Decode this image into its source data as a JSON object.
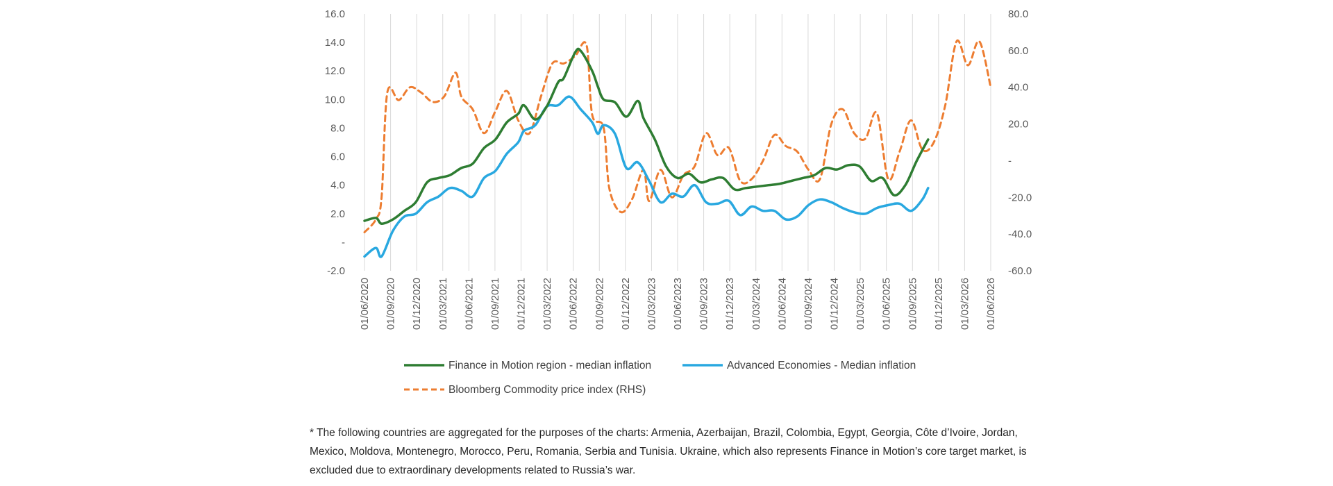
{
  "chart_data": {
    "type": "line",
    "y_left": {
      "ticks": [
        "16.0",
        "14.0",
        "12.0",
        "10.0",
        "8.0",
        "6.0",
        "4.0",
        "2.0",
        "-",
        "-2.0"
      ],
      "min": -2,
      "max": 16
    },
    "y_right": {
      "ticks": [
        "80.0",
        "60.0",
        "40.0",
        "20.0",
        "-",
        "-20.0",
        "-40.0",
        "-60.0"
      ],
      "min": -60,
      "max": 80
    },
    "x_ticks": [
      "01/06/2020",
      "01/09/2020",
      "01/12/2020",
      "01/03/2021",
      "01/06/2021",
      "01/09/2021",
      "01/12/2021",
      "01/03/2022",
      "01/06/2022",
      "01/09/2022",
      "01/12/2022",
      "01/03/2023",
      "01/06/2023",
      "01/09/2023",
      "01/12/2023",
      "01/03/2024",
      "01/06/2024",
      "01/09/2024",
      "01/12/2024",
      "01/03/2025",
      "01/06/2025",
      "01/09/2025",
      "01/12/2025",
      "01/03/2026",
      "01/06/2026"
    ],
    "x_index_range": [
      0,
      72
    ],
    "series": [
      {
        "name": "Finance in Motion region - median inflation",
        "axis": "left",
        "color": "#2e7d32",
        "style": "solid",
        "points": [
          [
            0,
            1.5
          ],
          [
            2,
            1.7
          ],
          [
            3,
            1.3
          ],
          [
            5,
            1.6
          ],
          [
            7,
            2.2
          ],
          [
            9,
            2.8
          ],
          [
            11,
            4.2
          ],
          [
            13,
            4.5
          ],
          [
            15,
            4.7
          ],
          [
            17,
            5.2
          ],
          [
            19,
            5.5
          ],
          [
            21,
            6.6
          ],
          [
            23,
            7.2
          ],
          [
            25,
            8.4
          ],
          [
            27,
            9.0
          ],
          [
            28,
            9.6
          ],
          [
            30,
            8.6
          ],
          [
            32,
            9.5
          ],
          [
            34,
            11.2
          ],
          [
            35,
            11.5
          ],
          [
            37,
            13.3
          ],
          [
            38,
            13.4
          ],
          [
            40,
            12.0
          ],
          [
            41,
            10.9
          ],
          [
            42,
            10.0
          ],
          [
            44,
            9.8
          ],
          [
            46,
            8.8
          ],
          [
            48,
            9.9
          ],
          [
            49,
            8.7
          ],
          [
            51,
            7.2
          ],
          [
            53,
            5.3
          ],
          [
            55,
            4.5
          ],
          [
            57,
            4.8
          ],
          [
            59,
            4.2
          ],
          [
            61,
            4.4
          ],
          [
            63,
            4.5
          ],
          [
            65,
            3.7
          ],
          [
            67,
            3.8
          ],
          [
            69,
            3.9
          ],
          [
            71,
            4.0
          ],
          [
            73,
            4.1
          ],
          [
            75,
            4.3
          ],
          [
            77,
            4.5
          ],
          [
            79,
            4.7
          ],
          [
            81,
            5.2
          ],
          [
            83,
            5.1
          ],
          [
            85,
            5.4
          ],
          [
            87,
            5.3
          ],
          [
            89,
            4.3
          ],
          [
            91,
            4.5
          ],
          [
            93,
            3.3
          ],
          [
            95,
            4.0
          ],
          [
            97,
            5.7
          ],
          [
            99,
            7.2
          ]
        ]
      },
      {
        "name": "Advanced Economies - Median inflation",
        "axis": "left",
        "color": "#29a8e0",
        "style": "solid",
        "points": [
          [
            0,
            -1.0
          ],
          [
            2,
            -0.4
          ],
          [
            3,
            -1.0
          ],
          [
            5,
            0.8
          ],
          [
            7,
            1.8
          ],
          [
            9,
            2.0
          ],
          [
            11,
            2.8
          ],
          [
            13,
            3.2
          ],
          [
            15,
            3.8
          ],
          [
            17,
            3.6
          ],
          [
            19,
            3.2
          ],
          [
            21,
            4.5
          ],
          [
            23,
            5.0
          ],
          [
            25,
            6.2
          ],
          [
            27,
            7.0
          ],
          [
            28,
            7.8
          ],
          [
            30,
            8.2
          ],
          [
            32,
            9.5
          ],
          [
            34,
            9.6
          ],
          [
            36,
            10.2
          ],
          [
            38,
            9.3
          ],
          [
            40,
            8.4
          ],
          [
            41,
            7.6
          ],
          [
            42,
            8.2
          ],
          [
            44,
            7.6
          ],
          [
            46,
            5.2
          ],
          [
            48,
            5.6
          ],
          [
            50,
            4.3
          ],
          [
            52,
            2.8
          ],
          [
            54,
            3.4
          ],
          [
            56,
            3.2
          ],
          [
            58,
            4.0
          ],
          [
            60,
            2.8
          ],
          [
            62,
            2.7
          ],
          [
            64,
            2.9
          ],
          [
            66,
            1.9
          ],
          [
            68,
            2.5
          ],
          [
            70,
            2.2
          ],
          [
            72,
            2.2
          ],
          [
            74,
            1.6
          ],
          [
            76,
            1.8
          ],
          [
            78,
            2.6
          ],
          [
            80,
            3.0
          ],
          [
            82,
            2.8
          ],
          [
            84,
            2.4
          ],
          [
            86,
            2.1
          ],
          [
            88,
            2.0
          ],
          [
            90,
            2.4
          ],
          [
            92,
            2.6
          ],
          [
            94,
            2.7
          ],
          [
            96,
            2.2
          ],
          [
            98,
            3.0
          ],
          [
            99,
            3.8
          ]
        ]
      },
      {
        "name": "Bloomberg Commodity price index (RHS)",
        "axis": "right",
        "color": "#ed7d31",
        "style": "dashed",
        "points": [
          [
            0,
            -39
          ],
          [
            2,
            -32
          ],
          [
            3,
            -20
          ],
          [
            4,
            37
          ],
          [
            6,
            33
          ],
          [
            8,
            40
          ],
          [
            10,
            37
          ],
          [
            12,
            32
          ],
          [
            14,
            35
          ],
          [
            16,
            48
          ],
          [
            17,
            35
          ],
          [
            19,
            28
          ],
          [
            21,
            15
          ],
          [
            23,
            27
          ],
          [
            25,
            38
          ],
          [
            27,
            22
          ],
          [
            29,
            15
          ],
          [
            31,
            35
          ],
          [
            33,
            53
          ],
          [
            35,
            53
          ],
          [
            37,
            57
          ],
          [
            39,
            63
          ],
          [
            40,
            25
          ],
          [
            42,
            18
          ],
          [
            43,
            -15
          ],
          [
            45,
            -28
          ],
          [
            47,
            -21
          ],
          [
            49,
            -5
          ],
          [
            50,
            -22
          ],
          [
            52,
            -5
          ],
          [
            54,
            -20
          ],
          [
            56,
            -8
          ],
          [
            58,
            -3
          ],
          [
            60,
            15
          ],
          [
            62,
            3
          ],
          [
            64,
            7
          ],
          [
            66,
            -11
          ],
          [
            68,
            -10
          ],
          [
            70,
            0
          ],
          [
            72,
            14
          ],
          [
            74,
            8
          ],
          [
            76,
            5
          ],
          [
            78,
            -5
          ],
          [
            80,
            -10
          ],
          [
            82,
            20
          ],
          [
            84,
            28
          ],
          [
            86,
            15
          ],
          [
            88,
            12
          ],
          [
            90,
            26
          ],
          [
            92,
            -10
          ],
          [
            94,
            5
          ],
          [
            96,
            22
          ],
          [
            98,
            6
          ],
          [
            100,
            10
          ],
          [
            102,
            30
          ],
          [
            104,
            65
          ],
          [
            106,
            52
          ],
          [
            108,
            65
          ],
          [
            110,
            40
          ]
        ]
      }
    ],
    "grid": "vertical-only",
    "legend_position": "bottom"
  },
  "legend": {
    "finance": "Finance in Motion region - median inflation",
    "advanced": "Advanced Economies - Median inflation",
    "bloomberg": "Bloomberg Commodity price index (RHS)"
  },
  "footnote": "* The following countries are aggregated for the purposes of the charts: Armenia, Azerbaijan, Brazil, Colombia, Egypt, Georgia, Côte d’Ivoire, Jordan, Mexico, Moldova, Montenegro, Morocco, Peru, Romania, Serbia and Tunisia. Ukraine, which also represents Finance in Motion’s core target market, is excluded due to extraordinary developments related to Russia’s war."
}
